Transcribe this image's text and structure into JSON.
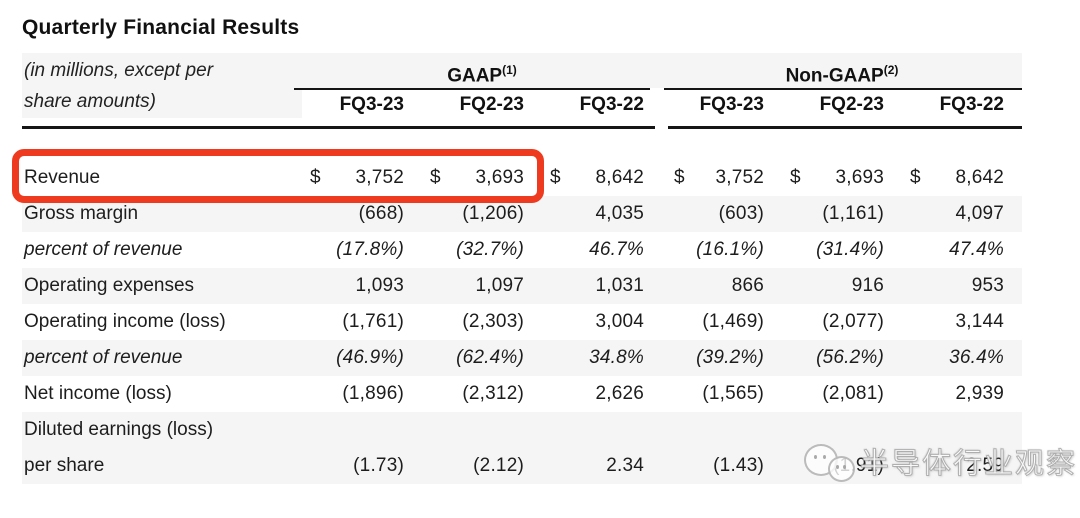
{
  "title": "Quarterly Financial Results",
  "table": {
    "note_lines": [
      "(in millions, except per",
      "share amounts)"
    ],
    "groups": [
      {
        "name": "GAAP",
        "footnote": "(1)",
        "periods": [
          "FQ3-23",
          "FQ2-23",
          "FQ3-22"
        ]
      },
      {
        "name": "Non-GAAP",
        "footnote": "(2)",
        "periods": [
          "FQ3-23",
          "FQ2-23",
          "FQ3-22"
        ]
      }
    ],
    "currency_symbol": "$",
    "rows": [
      {
        "label_lines": [
          "Revenue"
        ],
        "dollar": true,
        "italic": false,
        "shaded": false,
        "highlighted": true,
        "values": [
          "3,752",
          "3,693",
          "8,642",
          "3,752",
          "3,693",
          "8,642"
        ]
      },
      {
        "label_lines": [
          "Gross margin"
        ],
        "dollar": false,
        "italic": false,
        "shaded": true,
        "values": [
          "(668)",
          "(1,206)",
          "4,035",
          "(603)",
          "(1,161)",
          "4,097"
        ]
      },
      {
        "label_lines": [
          "percent of revenue"
        ],
        "dollar": false,
        "italic": true,
        "shaded": false,
        "values": [
          "(17.8%)",
          "(32.7%)",
          "46.7%",
          "(16.1%)",
          "(31.4%)",
          "47.4%"
        ]
      },
      {
        "label_lines": [
          "Operating expenses"
        ],
        "dollar": false,
        "italic": false,
        "shaded": true,
        "values": [
          "1,093",
          "1,097",
          "1,031",
          "866",
          "916",
          "953"
        ]
      },
      {
        "label_lines": [
          "Operating income (loss)"
        ],
        "dollar": false,
        "italic": false,
        "shaded": false,
        "values": [
          "(1,761)",
          "(2,303)",
          "3,004",
          "(1,469)",
          "(2,077)",
          "3,144"
        ]
      },
      {
        "label_lines": [
          "percent of revenue"
        ],
        "dollar": false,
        "italic": true,
        "shaded": true,
        "values": [
          "(46.9%)",
          "(62.4%)",
          "34.8%",
          "(39.2%)",
          "(56.2%)",
          "36.4%"
        ]
      },
      {
        "label_lines": [
          "Net income (loss)"
        ],
        "dollar": false,
        "italic": false,
        "shaded": false,
        "values": [
          "(1,896)",
          "(2,312)",
          "2,626",
          "(1,565)",
          "(2,081)",
          "2,939"
        ]
      },
      {
        "label_lines": [
          "Diluted earnings (loss)",
          "per share"
        ],
        "dollar": false,
        "italic": false,
        "shaded": true,
        "values": [
          "(1.73)",
          "(2.12)",
          "2.34",
          "(1.43)",
          "(1.91)",
          "2.59"
        ]
      }
    ]
  },
  "highlight": {
    "color": "#ee3b1f"
  },
  "colors": {
    "row_stripe": "#f5f5f6",
    "rule": "#151515"
  },
  "watermark": {
    "icon": "wechat-chat-bubbles-icon",
    "text": "半导体行业观察"
  }
}
